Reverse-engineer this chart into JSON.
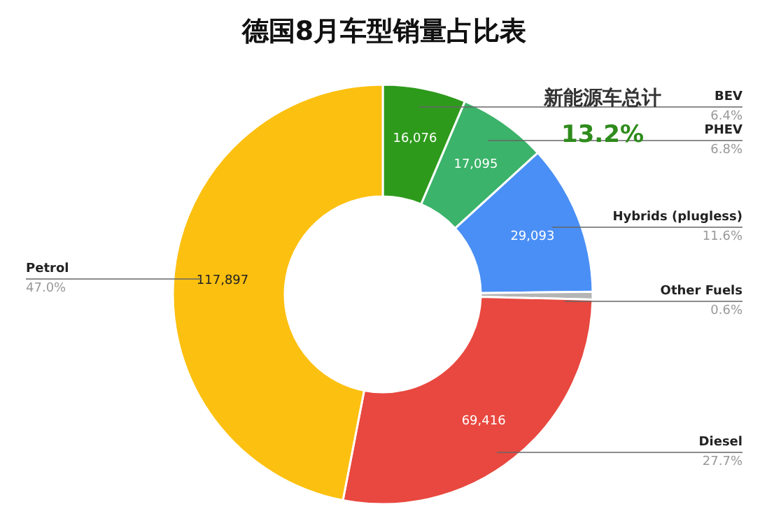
{
  "chart_data": {
    "type": "donut",
    "title": "德国8月车型销量占比表",
    "categories": [
      "BEV",
      "PHEV",
      "Hybrids (plugless)",
      "Other Fuels",
      "Diesel",
      "Petrol"
    ],
    "values": [
      16076,
      17095,
      29093,
      1500,
      69416,
      117897
    ],
    "value_labels": [
      "16,076",
      "17,095",
      "29,093",
      null,
      "69,416",
      "117,897"
    ],
    "colors": [
      "#2e9a1c",
      "#3bb36a",
      "#4a8ff5",
      "#b5b5b5",
      "#e8483f",
      "#fcc010"
    ],
    "annotations": [
      "新能源车总计",
      "13.2%",
      {
        "text": "6.4%",
        "x": "BEV"
      },
      {
        "text": "6.8%",
        "x": "PHEV"
      },
      {
        "text": "11.6%",
        "x": "Hybrids (plugless)"
      },
      {
        "text": "0.6%",
        "x": "Other Fuels"
      },
      {
        "text": "27.7%",
        "x": "Diesel"
      },
      {
        "text": "47.0%",
        "x": "Petrol"
      }
    ]
  }
}
